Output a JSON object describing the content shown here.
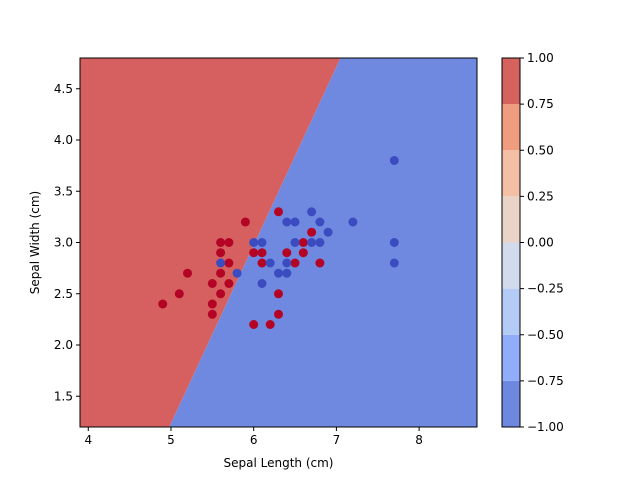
{
  "chart_data": {
    "type": "scatter",
    "title": "",
    "xlabel": "Sepal Length (cm)",
    "ylabel": "Sepal Width (cm)",
    "xlim": [
      3.9,
      8.7
    ],
    "ylim": [
      1.2,
      4.8
    ],
    "x_ticks": [
      4,
      5,
      6,
      7,
      8
    ],
    "x_tick_labels": [
      "4",
      "5",
      "6",
      "7",
      "8"
    ],
    "y_ticks": [
      1.5,
      2.0,
      2.5,
      3.0,
      3.5,
      4.0,
      4.5
    ],
    "y_tick_labels": [
      "1.5",
      "2.0",
      "2.5",
      "3.0",
      "3.5",
      "4.0",
      "4.5"
    ],
    "grid": false,
    "decision_boundary": {
      "line_through": [
        [
          4.98,
          1.2
        ],
        [
          7.05,
          4.8
        ]
      ],
      "left_region_value": 1.0,
      "right_region_value": -1.0,
      "left_region_color": "#d65f5f",
      "right_region_color": "#7089e0"
    },
    "colorbar": {
      "range": [
        -1.0,
        1.0
      ],
      "levels": [
        -1.0,
        -0.75,
        -0.5,
        -0.25,
        0.0,
        0.25,
        0.5,
        0.75,
        1.0
      ],
      "tick_labels": [
        "−1.00",
        "−0.75",
        "−0.50",
        "−0.25",
        "0.00",
        "0.25",
        "0.50",
        "0.75",
        "1.00"
      ],
      "band_colors": [
        "#6e88df",
        "#91acf9",
        "#b4cbf6",
        "#d2dbee",
        "#ead4c8",
        "#f4c0a5",
        "#ef9c7f",
        "#d5625c"
      ]
    },
    "series": [
      {
        "color": "#b40426",
        "points": [
          [
            4.9,
            2.4
          ],
          [
            5.1,
            2.5
          ],
          [
            5.2,
            2.7
          ],
          [
            5.5,
            2.3
          ],
          [
            5.5,
            2.4
          ],
          [
            5.5,
            2.6
          ],
          [
            5.6,
            2.5
          ],
          [
            5.6,
            2.7
          ],
          [
            5.6,
            2.9
          ],
          [
            5.6,
            3.0
          ],
          [
            5.7,
            2.6
          ],
          [
            5.7,
            2.8
          ],
          [
            5.7,
            3.0
          ],
          [
            5.9,
            3.2
          ],
          [
            6.0,
            2.2
          ],
          [
            6.0,
            2.9
          ],
          [
            6.1,
            2.8
          ],
          [
            6.1,
            2.9
          ],
          [
            6.2,
            2.2
          ],
          [
            6.3,
            2.3
          ],
          [
            6.3,
            2.5
          ],
          [
            6.3,
            3.3
          ],
          [
            6.4,
            2.9
          ],
          [
            6.5,
            2.8
          ],
          [
            6.6,
            2.9
          ],
          [
            6.6,
            3.0
          ],
          [
            6.7,
            3.1
          ],
          [
            6.8,
            2.8
          ]
        ]
      },
      {
        "color": "#3b4cc0",
        "points": [
          [
            5.6,
            2.8
          ],
          [
            5.8,
            2.7
          ],
          [
            6.0,
            3.0
          ],
          [
            6.1,
            2.6
          ],
          [
            6.1,
            3.0
          ],
          [
            6.2,
            2.8
          ],
          [
            6.3,
            2.7
          ],
          [
            6.4,
            2.7
          ],
          [
            6.4,
            2.8
          ],
          [
            6.4,
            3.2
          ],
          [
            6.5,
            3.0
          ],
          [
            6.5,
            3.2
          ],
          [
            6.7,
            3.0
          ],
          [
            6.7,
            3.3
          ],
          [
            6.8,
            3.0
          ],
          [
            6.8,
            3.2
          ],
          [
            6.9,
            3.1
          ],
          [
            7.2,
            3.2
          ],
          [
            7.7,
            2.8
          ],
          [
            7.7,
            3.0
          ],
          [
            7.7,
            3.8
          ]
        ]
      }
    ]
  }
}
